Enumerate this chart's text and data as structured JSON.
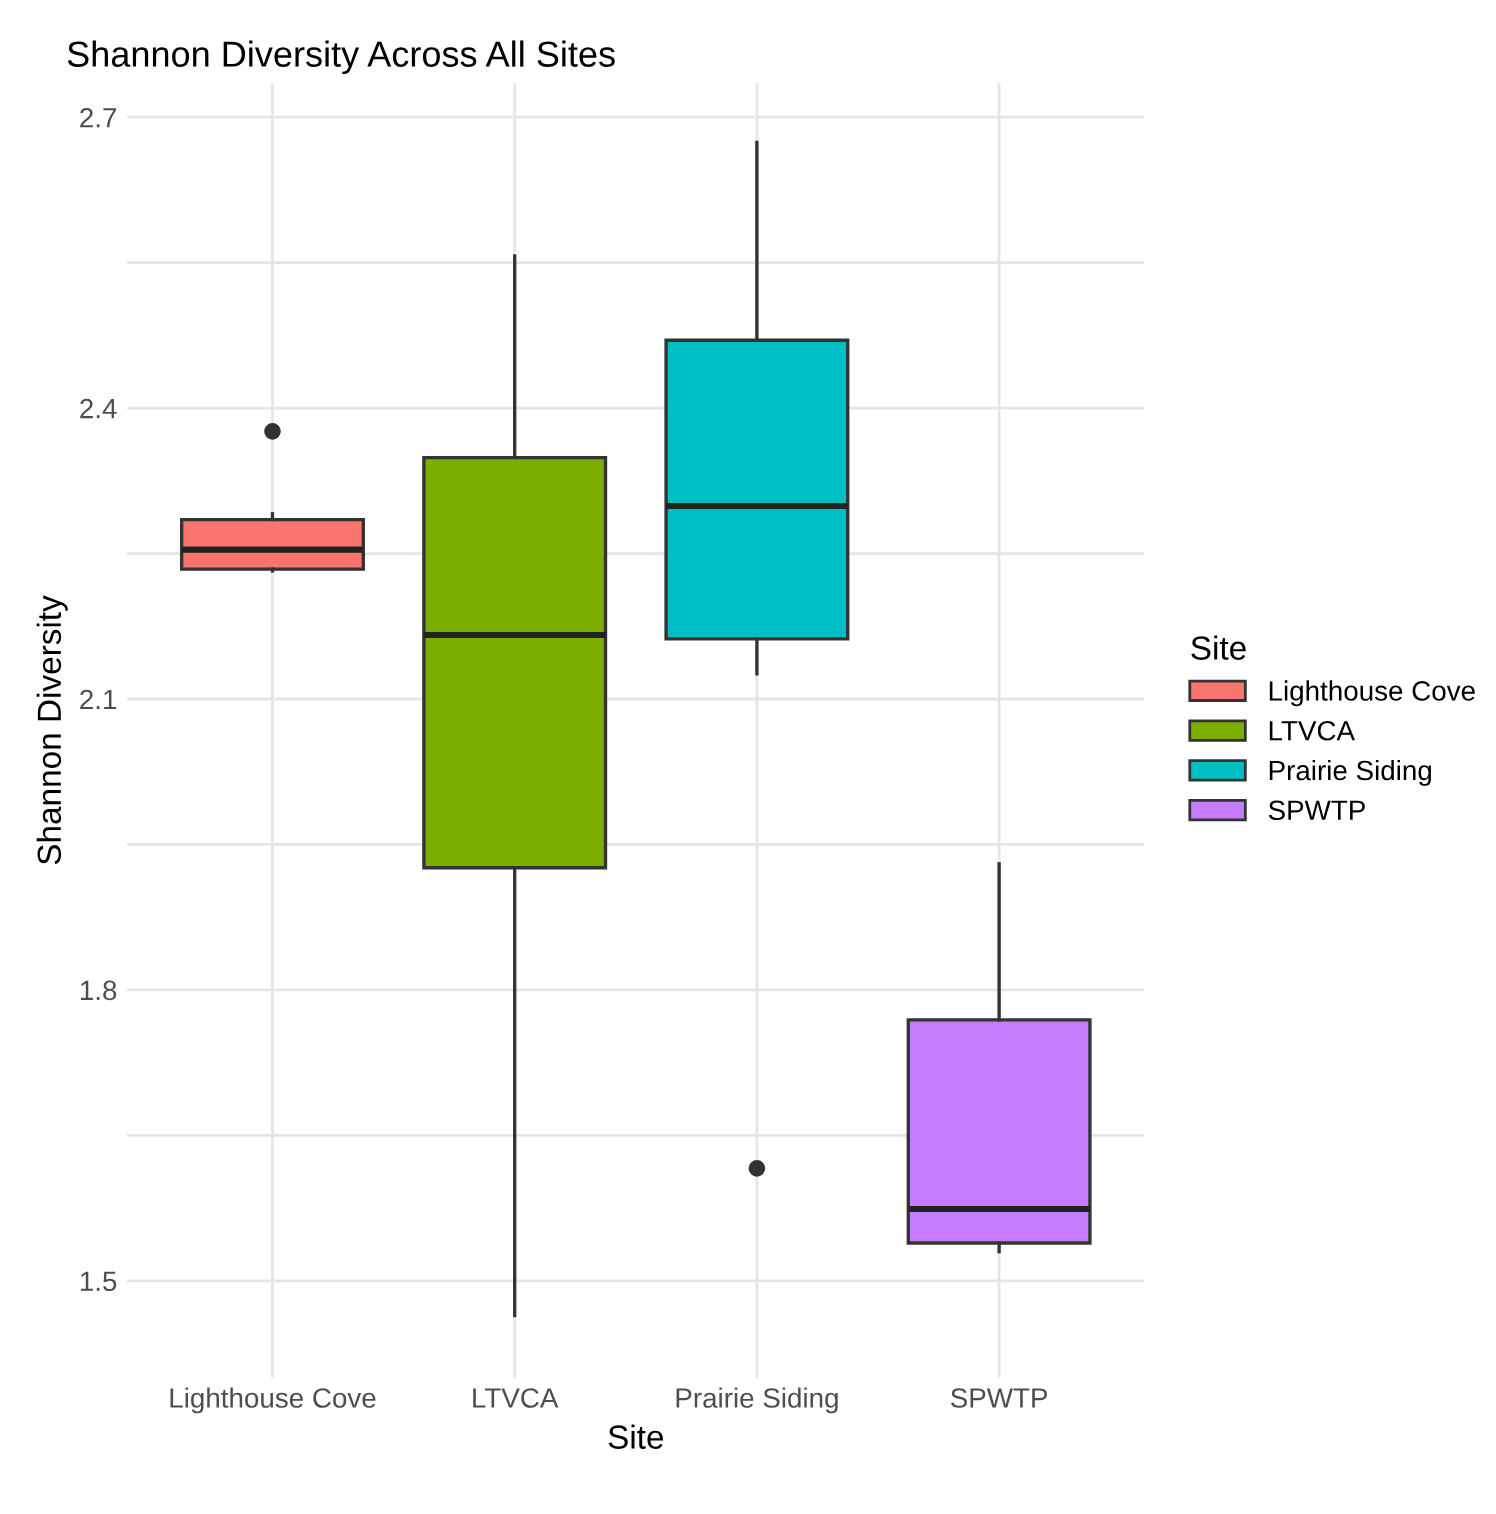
{
  "chart_data": {
    "type": "box",
    "title": "Shannon Diversity Across All Sites",
    "xlabel": "Site",
    "ylabel": "Shannon Diversity",
    "legend_title": "Site",
    "categories": [
      "Lighthouse Cove",
      "LTVCA",
      "Prairie Siding",
      "SPWTP"
    ],
    "series": [
      {
        "name": "Lighthouse Cove",
        "color": "#f8766d",
        "boxes": [
          {
            "low": 2.232,
            "q1": 2.234,
            "median": 2.254,
            "q3": 2.285,
            "high": 2.291,
            "outliers": [
              2.376
            ]
          },
          null,
          null,
          null
        ]
      },
      {
        "name": "LTVCA",
        "color": "#7cae00",
        "boxes": [
          null,
          {
            "low": 1.464,
            "q1": 1.926,
            "median": 2.166,
            "q3": 2.349,
            "high": 2.557
          },
          null,
          null
        ]
      },
      {
        "name": "Prairie Siding",
        "color": "#00bfc4",
        "boxes": [
          null,
          null,
          {
            "low": 2.126,
            "q1": 2.162,
            "median": 2.299,
            "q3": 2.47,
            "high": 2.674,
            "outliers": [
              1.616
            ]
          },
          null
        ]
      },
      {
        "name": "SPWTP",
        "color": "#c77cff",
        "boxes": [
          null,
          null,
          null,
          {
            "low": 1.53,
            "q1": 1.539,
            "median": 1.574,
            "q3": 1.769,
            "high": 1.93
          }
        ]
      }
    ],
    "ylim": [
      1.4,
      2.735
    ],
    "yticks": [
      1.5,
      {
        "value": 1.65,
        "label": null
      },
      1.8,
      {
        "value": 1.95,
        "label": null
      },
      2.1,
      {
        "value": 2.25,
        "label": null
      },
      2.4,
      {
        "value": 2.55,
        "label": null
      },
      2.7
    ],
    "grid": true,
    "legend": "right"
  }
}
